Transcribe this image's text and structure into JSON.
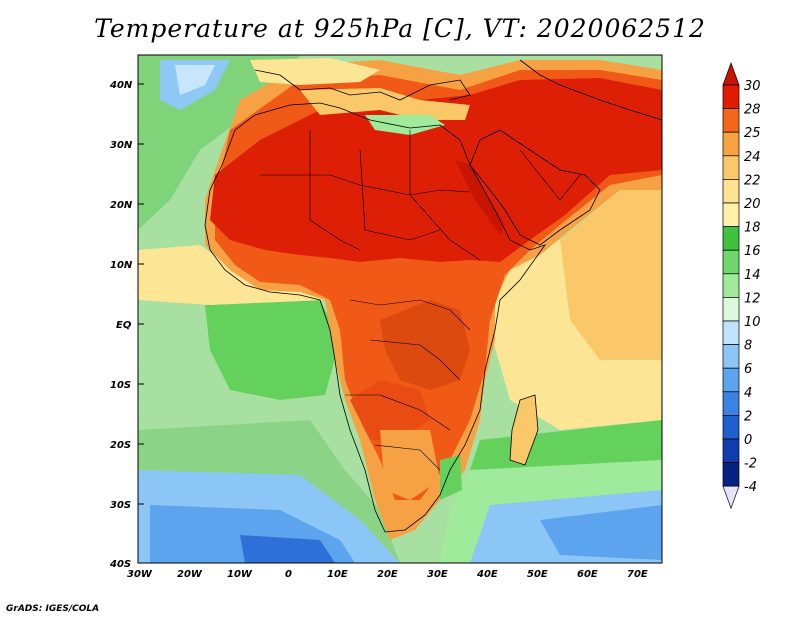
{
  "title": "Temperature at 925hPa [C], VT: 2020062512",
  "credit": "GrADS: IGES/COLA",
  "lat_labels": [
    "40N",
    "30N",
    "20N",
    "10N",
    "EQ",
    "10S",
    "20S",
    "30S",
    "40S"
  ],
  "lon_labels": [
    "30W",
    "20W",
    "10W",
    "0",
    "10E",
    "20E",
    "30E",
    "40E",
    "50E",
    "60E",
    "70E"
  ],
  "colorbar": {
    "labels": [
      "30",
      "28",
      "25",
      "24",
      "22",
      "20",
      "18",
      "16",
      "14",
      "12",
      "10",
      "8",
      "6",
      "4",
      "2",
      "0",
      "-2",
      "-4"
    ],
    "colors": [
      "#e31a02",
      "#f5661b",
      "#f9a23f",
      "#fbc869",
      "#fde28f",
      "#fef0a5",
      "#3fc23f",
      "#6fd86a",
      "#a0ea9c",
      "#dcf9dc",
      "#bfe3fb",
      "#8cc6f6",
      "#5ca4ee",
      "#3a83e3",
      "#1f60d0",
      "#0f3cae",
      "#062283"
    ],
    "over_color": "#c81500",
    "under_color": "#e6e6fa"
  },
  "colors": {
    "ocean_cool": "#a8e0a2",
    "ocean_green": "#63d15c",
    "ocean_warm": "#fde596",
    "land_hot": "#dd1f05",
    "land_warm": "#f05a16",
    "land_mild": "#f6a244",
    "sea_cold": "#6fa9ee",
    "sea_colder": "#2f6fd8"
  }
}
